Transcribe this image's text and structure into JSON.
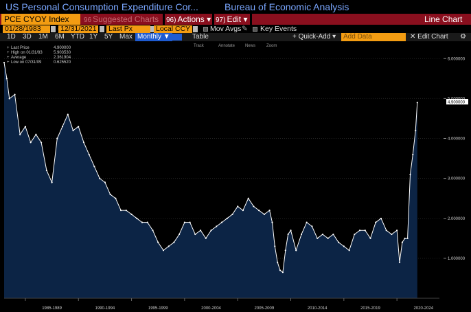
{
  "window": {
    "title": "US Personal Consumption Expenditure Cor...",
    "source": "Bureau of Economic Analysis"
  },
  "command_bar": {
    "ticker": "PCE CYOY Index",
    "suggested": {
      "num": "96",
      "label": "Suggested Charts"
    },
    "actions": {
      "num": "96)",
      "label": "Actions ▾"
    },
    "edit": {
      "num": "97)",
      "label": "Edit ▾"
    },
    "chart_type": "Line Chart"
  },
  "params": {
    "start_date": "01/28/1983",
    "end_date": "12/31/2021",
    "field": "Last Px",
    "currency": "Local CCY",
    "mov_avgs": "Mov Avgs",
    "key_events": "Key Events"
  },
  "toolbar": {
    "periods": [
      "1D",
      "3D",
      "1M",
      "6M",
      "YTD",
      "1Y",
      "5Y",
      "Max"
    ],
    "frequency": "Monthly ▼",
    "table": "Table",
    "quick_add": "+ Quick-Add ▾",
    "add_data_placeholder": "Add Data",
    "edit_chart": "✕ Edit Chart",
    "settings_icon": "gear-icon"
  },
  "chart_tools": [
    "Track",
    "Annotate",
    "News",
    "Zoom"
  ],
  "legend": {
    "rows": [
      {
        "label": "Last Price",
        "value": "4.900000"
      },
      {
        "label": "High on 01/31/83",
        "value": "5.903530"
      },
      {
        "label": "Average",
        "value": "2.361904"
      },
      {
        "label": "Low on 07/31/09",
        "value": "0.625520"
      }
    ]
  },
  "colors": {
    "accent_blue": "#7aa7ff",
    "command_red": "#8a0f1e",
    "amber": "#f39c12",
    "area_fill": "#0c2445",
    "line": "#ffffff"
  },
  "chart_data": {
    "type": "area",
    "ylim": [
      0,
      6.4
    ],
    "y_ticks": [
      "6.000000",
      "5.000000",
      "4.000000",
      "3.000000",
      "2.000000",
      "1.000000"
    ],
    "y_tick_values": [
      6,
      5,
      4,
      3,
      2,
      1
    ],
    "last_value_label": "4.900000",
    "x_labels": [
      "1985-1989",
      "1990-1994",
      "1995-1999",
      "2000-2004",
      "2005-2009",
      "2010-2014",
      "2015-2019",
      "2020-2024"
    ],
    "x_label_centers": [
      1987.5,
      1992.5,
      1997.5,
      2002.5,
      2007.5,
      2012.5,
      2017.5,
      2022.5
    ],
    "xlim": [
      1983.0,
      2024.0
    ],
    "x": [
      1983.0,
      1983.25,
      1983.5,
      1984.0,
      1984.5,
      1985.0,
      1985.5,
      1986.0,
      1986.5,
      1987.0,
      1987.5,
      1988.0,
      1988.5,
      1989.0,
      1989.5,
      1990.0,
      1990.5,
      1991.0,
      1991.5,
      1992.0,
      1992.5,
      1993.0,
      1993.5,
      1994.0,
      1994.5,
      1995.0,
      1995.5,
      1996.0,
      1996.5,
      1997.0,
      1997.5,
      1998.0,
      1998.5,
      1999.0,
      1999.5,
      2000.0,
      2000.5,
      2001.0,
      2001.5,
      2002.0,
      2002.5,
      2003.0,
      2003.5,
      2004.0,
      2004.5,
      2005.0,
      2005.5,
      2006.0,
      2006.5,
      2007.0,
      2007.5,
      2008.0,
      2008.25,
      2008.5,
      2008.75,
      2009.0,
      2009.25,
      2009.5,
      2009.75,
      2010.0,
      2010.5,
      2011.0,
      2011.5,
      2012.0,
      2012.5,
      2013.0,
      2013.5,
      2014.0,
      2014.5,
      2015.0,
      2015.5,
      2016.0,
      2016.5,
      2017.0,
      2017.5,
      2018.0,
      2018.5,
      2019.0,
      2019.5,
      2020.0,
      2020.25,
      2020.5,
      2020.75,
      2021.0,
      2021.25,
      2021.5,
      2021.75,
      2021.92
    ],
    "values": [
      5.9,
      5.5,
      5.0,
      5.1,
      4.1,
      4.3,
      3.9,
      4.1,
      3.9,
      3.2,
      2.9,
      4.0,
      4.3,
      4.6,
      4.2,
      4.3,
      3.9,
      3.6,
      3.3,
      3.0,
      2.9,
      2.6,
      2.5,
      2.2,
      2.2,
      2.1,
      2.0,
      1.9,
      1.9,
      1.7,
      1.4,
      1.2,
      1.3,
      1.4,
      1.6,
      1.9,
      1.9,
      1.6,
      1.7,
      1.5,
      1.7,
      1.8,
      1.9,
      2.0,
      2.1,
      2.3,
      2.2,
      2.5,
      2.3,
      2.2,
      2.1,
      2.2,
      1.9,
      1.3,
      0.9,
      0.7,
      0.65,
      1.2,
      1.6,
      1.7,
      1.2,
      1.6,
      1.9,
      1.8,
      1.5,
      1.6,
      1.5,
      1.6,
      1.4,
      1.3,
      1.2,
      1.6,
      1.7,
      1.7,
      1.5,
      1.9,
      2.0,
      1.7,
      1.6,
      1.7,
      0.9,
      1.4,
      1.5,
      1.5,
      3.1,
      3.6,
      4.2,
      4.9
    ]
  }
}
